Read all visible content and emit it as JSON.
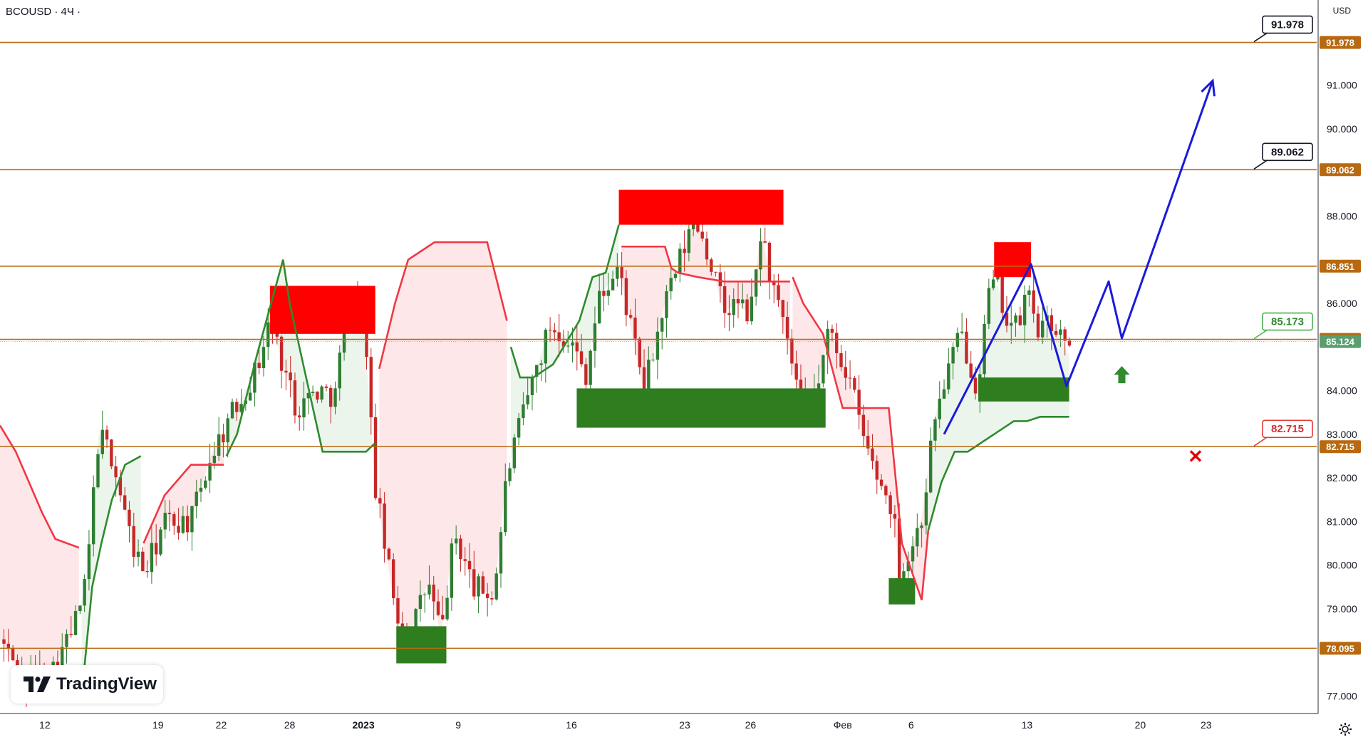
{
  "header": {
    "symbol": "BCOUSD · 4Ч ·",
    "currency": "USD"
  },
  "logo": {
    "text": "TradingView"
  },
  "colors": {
    "level_line": "#b8690f",
    "support_zone": "#2e7d1f",
    "resistance_zone": "#ff0000",
    "supertrend_up": "#2e8b2e",
    "supertrend_down": "#f23645",
    "projection": "#1a1adb",
    "up_candle": "#2e7d32",
    "down_candle": "#c62828",
    "stop_marker": "#e00000",
    "entry_arrow": "#2e8b2e"
  },
  "chart_data": {
    "type": "candlestick",
    "y_axis": {
      "range": [
        76.6,
        92.95
      ],
      "ticks": [
        "77.000",
        "79.000",
        "80.000",
        "81.000",
        "82.000",
        "83.000",
        "84.000",
        "86.000",
        "88.000",
        "90.000",
        "91.000"
      ]
    },
    "x_axis": {
      "ticks": [
        "12",
        "19",
        "22",
        "28",
        "2023",
        "9",
        "16",
        "23",
        "26",
        "Фев",
        "6",
        "13",
        "20",
        "23"
      ]
    },
    "levels": [
      {
        "price": 91.978,
        "tag": "91.978",
        "callout": "91.978",
        "callout_style": "black"
      },
      {
        "price": 89.062,
        "tag": "89.062",
        "callout": "89.062",
        "callout_style": "black"
      },
      {
        "price": 86.851,
        "tag": "86.851",
        "callout": "",
        "callout_style": ""
      },
      {
        "price": 85.173,
        "tag": "85.173",
        "callout": "85.173",
        "callout_style": "green"
      },
      {
        "price": 82.715,
        "tag": "82.715",
        "callout": "82.715",
        "callout_style": "red"
      },
      {
        "price": 78.095,
        "tag": "78.095",
        "callout": "",
        "callout_style": ""
      }
    ],
    "current_price": {
      "price": 85.124,
      "tag": "85.124"
    },
    "resistance_zones": [
      {
        "x_from": 0.205,
        "x_to": 0.285,
        "y_low": 85.3,
        "y_high": 86.4
      },
      {
        "x_from": 0.47,
        "x_to": 0.595,
        "y_low": 87.8,
        "y_high": 88.6
      },
      {
        "x_from": 0.755,
        "x_to": 0.783,
        "y_low": 86.6,
        "y_high": 87.4
      }
    ],
    "support_zones": [
      {
        "x_from": 0.301,
        "x_to": 0.339,
        "y_low": 77.75,
        "y_high": 78.6
      },
      {
        "x_from": 0.438,
        "x_to": 0.627,
        "y_low": 83.15,
        "y_high": 84.05
      },
      {
        "x_from": 0.675,
        "x_to": 0.695,
        "y_low": 79.1,
        "y_high": 79.7
      },
      {
        "x_from": 0.743,
        "x_to": 0.812,
        "y_low": 83.75,
        "y_high": 84.3
      }
    ],
    "supertrend": {
      "x": [
        0.0,
        0.012,
        0.022,
        0.032,
        0.042,
        0.06,
        0.062,
        0.07,
        0.077,
        0.085,
        0.095,
        0.107,
        0.108,
        0.109,
        0.125,
        0.145,
        0.17,
        0.172,
        0.18,
        0.195,
        0.215,
        0.22,
        0.245,
        0.27,
        0.278,
        0.285,
        0.288,
        0.3,
        0.31,
        0.33,
        0.37,
        0.385,
        0.388,
        0.395,
        0.405,
        0.42,
        0.44,
        0.45,
        0.46,
        0.47,
        0.472,
        0.478,
        0.49,
        0.505,
        0.51,
        0.515,
        0.53,
        0.55,
        0.575,
        0.6,
        0.602,
        0.61,
        0.625,
        0.64,
        0.66,
        0.675,
        0.685,
        0.7,
        0.705,
        0.715,
        0.725,
        0.735,
        0.745,
        0.755,
        0.76,
        0.77,
        0.78,
        0.79,
        0.8,
        0.812
      ],
      "y": [
        83.2,
        82.6,
        81.9,
        81.2,
        80.6,
        80.4,
        77.0,
        79.5,
        80.5,
        81.5,
        82.3,
        82.5,
        83.0,
        80.5,
        81.6,
        82.3,
        82.3,
        82.5,
        83.0,
        84.8,
        87.0,
        86.0,
        82.6,
        82.6,
        82.6,
        82.8,
        84.5,
        86.0,
        87.0,
        87.4,
        87.4,
        85.6,
        85.0,
        84.3,
        84.3,
        84.6,
        85.6,
        86.6,
        86.7,
        87.8,
        87.3,
        87.3,
        87.3,
        87.3,
        86.8,
        86.7,
        86.6,
        86.5,
        86.5,
        86.5,
        86.6,
        86.0,
        85.3,
        83.6,
        83.6,
        83.6,
        80.5,
        79.2,
        80.8,
        81.9,
        82.6,
        82.6,
        82.8,
        83.0,
        83.1,
        83.3,
        83.3,
        83.4,
        83.4,
        83.4
      ],
      "segments": [
        {
          "from": 0.0,
          "to": 0.06,
          "dir": "down"
        },
        {
          "from": 0.062,
          "to": 0.107,
          "dir": "up"
        },
        {
          "from": 0.109,
          "to": 0.17,
          "dir": "down"
        },
        {
          "from": 0.172,
          "to": 0.285,
          "dir": "up"
        },
        {
          "from": 0.288,
          "to": 0.385,
          "dir": "down"
        },
        {
          "from": 0.388,
          "to": 0.47,
          "dir": "up"
        },
        {
          "from": 0.472,
          "to": 0.6,
          "dir": "down"
        },
        {
          "from": 0.602,
          "to": 0.705,
          "dir": "down"
        },
        {
          "from": 0.705,
          "to": 0.812,
          "dir": "up"
        }
      ]
    },
    "projection_path": [
      {
        "x": 0.717,
        "y": 83.0
      },
      {
        "x": 0.783,
        "y": 86.9
      },
      {
        "x": 0.81,
        "y": 84.1
      },
      {
        "x": 0.842,
        "y": 86.5
      },
      {
        "x": 0.852,
        "y": 85.2
      },
      {
        "x": 0.921,
        "y": 91.1
      }
    ],
    "entry_arrow": {
      "x": 0.852,
      "y": 84.3
    },
    "stop_marker": {
      "x": 0.908,
      "y": 82.5
    }
  }
}
